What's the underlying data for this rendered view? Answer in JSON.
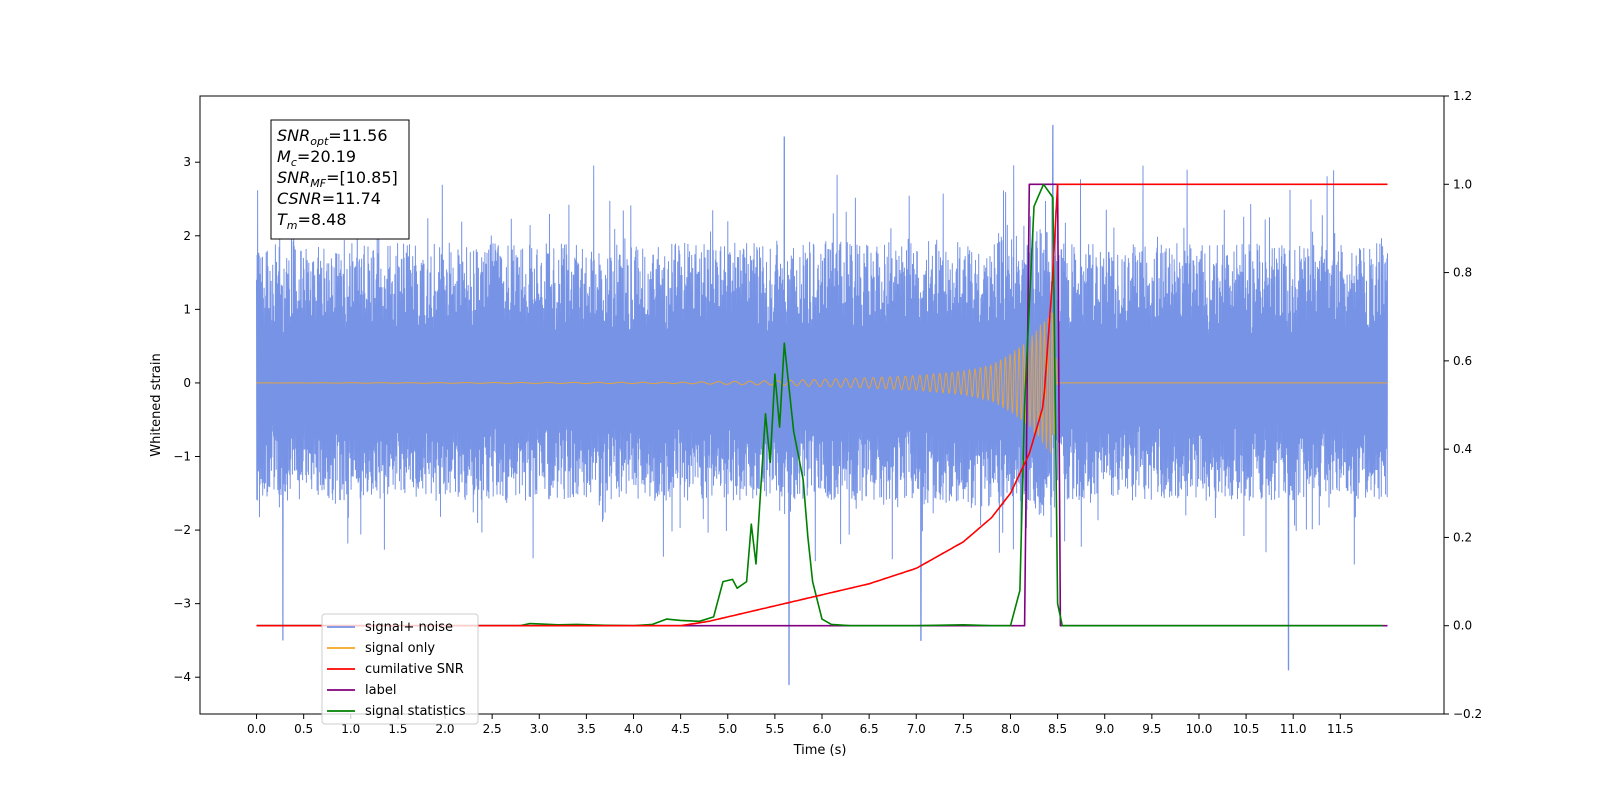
{
  "chart_data": {
    "type": "line",
    "xlabel": "Time (s)",
    "ylabel": "Whitened strain",
    "xlim": [
      -0.6,
      12.6
    ],
    "ylim": [
      -4.5,
      3.9
    ],
    "y2lim": [
      -0.2,
      1.2
    ],
    "x_ticks": [
      "0.0",
      "0.5",
      "1.0",
      "1.5",
      "2.0",
      "2.5",
      "3.0",
      "3.5",
      "4.0",
      "4.5",
      "5.0",
      "5.5",
      "6.0",
      "6.5",
      "7.0",
      "7.5",
      "8.0",
      "8.5",
      "9.0",
      "9.5",
      "10.0",
      "10.5",
      "11.0",
      "11.5"
    ],
    "y_ticks": [
      "3",
      "2",
      "1",
      "0",
      "−1",
      "−2",
      "−3",
      "−4"
    ],
    "y2_ticks": [
      "1.2",
      "1.0",
      "0.8",
      "0.6",
      "0.4",
      "0.2",
      "0.0",
      "−0.2"
    ],
    "info_box": [
      {
        "base": "SNR",
        "sub": "opt",
        "value": "=11.56"
      },
      {
        "base": "M",
        "sub": "c",
        "value": "=20.19"
      },
      {
        "base": "SNR",
        "sub": "MF",
        "value": "=[10.85]"
      },
      {
        "base": "CSNR",
        "sub": "",
        "value": "=11.74"
      },
      {
        "base": "T",
        "sub": "m",
        "value": "=8.48"
      }
    ],
    "legend_position": "lower-left",
    "series": [
      {
        "name": "signal+ noise",
        "color": "#7793e6",
        "axis": "left",
        "x_range": [
          0.0,
          12.0
        ],
        "typical_amplitude": [
          -1.6,
          1.9
        ],
        "extreme_peaks": [
          [
            0.28,
            -3.5
          ],
          [
            5.6,
            3.35
          ],
          [
            5.65,
            -4.1
          ],
          [
            7.05,
            -3.5
          ],
          [
            8.45,
            3.5
          ],
          [
            10.95,
            -3.9
          ]
        ]
      },
      {
        "name": "signal only",
        "color": "#f5a623",
        "axis": "left",
        "envelope_points": [
          [
            0.0,
            0.0
          ],
          [
            4.5,
            0.01
          ],
          [
            5.5,
            0.03
          ],
          [
            6.0,
            0.05
          ],
          [
            6.5,
            0.07
          ],
          [
            7.0,
            0.1
          ],
          [
            7.5,
            0.16
          ],
          [
            7.8,
            0.25
          ],
          [
            8.0,
            0.4
          ],
          [
            8.2,
            0.6
          ],
          [
            8.35,
            0.85
          ],
          [
            8.45,
            1.0
          ],
          [
            8.5,
            0.0
          ],
          [
            12.0,
            0.0
          ]
        ]
      },
      {
        "name": "cumilative SNR",
        "color": "#ff0000",
        "axis": "right",
        "points": [
          [
            0.0,
            0.0
          ],
          [
            4.5,
            0.0
          ],
          [
            4.8,
            0.01
          ],
          [
            5.0,
            0.02
          ],
          [
            5.5,
            0.045
          ],
          [
            6.0,
            0.07
          ],
          [
            6.5,
            0.095
          ],
          [
            7.0,
            0.13
          ],
          [
            7.5,
            0.19
          ],
          [
            7.8,
            0.245
          ],
          [
            8.0,
            0.3
          ],
          [
            8.2,
            0.39
          ],
          [
            8.35,
            0.5
          ],
          [
            8.45,
            0.8
          ],
          [
            8.5,
            1.0
          ],
          [
            11.5,
            1.0
          ],
          [
            12.0,
            1.0
          ]
        ]
      },
      {
        "name": "label",
        "color": "#800080",
        "axis": "right",
        "points": [
          [
            0.0,
            0.0
          ],
          [
            8.15,
            0.0
          ],
          [
            8.2,
            1.0
          ],
          [
            8.5,
            1.0
          ],
          [
            8.53,
            0.0
          ],
          [
            12.0,
            0.0
          ]
        ]
      },
      {
        "name": "signal statistics",
        "color": "#008000",
        "axis": "right",
        "points": [
          [
            0.0,
            0.0
          ],
          [
            2.8,
            0.0
          ],
          [
            2.9,
            0.005
          ],
          [
            3.0,
            0.004
          ],
          [
            3.2,
            0.002
          ],
          [
            3.4,
            0.003
          ],
          [
            3.7,
            0.001
          ],
          [
            4.0,
            0.0
          ],
          [
            4.2,
            0.003
          ],
          [
            4.35,
            0.015
          ],
          [
            4.5,
            0.012
          ],
          [
            4.7,
            0.01
          ],
          [
            4.85,
            0.02
          ],
          [
            4.95,
            0.1
          ],
          [
            5.05,
            0.105
          ],
          [
            5.1,
            0.085
          ],
          [
            5.2,
            0.1
          ],
          [
            5.25,
            0.23
          ],
          [
            5.3,
            0.14
          ],
          [
            5.4,
            0.48
          ],
          [
            5.45,
            0.37
          ],
          [
            5.5,
            0.57
          ],
          [
            5.55,
            0.45
          ],
          [
            5.6,
            0.64
          ],
          [
            5.7,
            0.44
          ],
          [
            5.8,
            0.33
          ],
          [
            5.85,
            0.2
          ],
          [
            5.9,
            0.1
          ],
          [
            6.0,
            0.015
          ],
          [
            6.1,
            0.003
          ],
          [
            6.3,
            0.0
          ],
          [
            7.0,
            0.0
          ],
          [
            7.5,
            0.002
          ],
          [
            7.8,
            0.0
          ],
          [
            8.0,
            0.0
          ],
          [
            8.1,
            0.08
          ],
          [
            8.15,
            0.5
          ],
          [
            8.25,
            0.95
          ],
          [
            8.35,
            1.0
          ],
          [
            8.45,
            0.97
          ],
          [
            8.5,
            0.05
          ],
          [
            8.55,
            0.0
          ],
          [
            11.95,
            0.0
          ]
        ]
      }
    ]
  }
}
